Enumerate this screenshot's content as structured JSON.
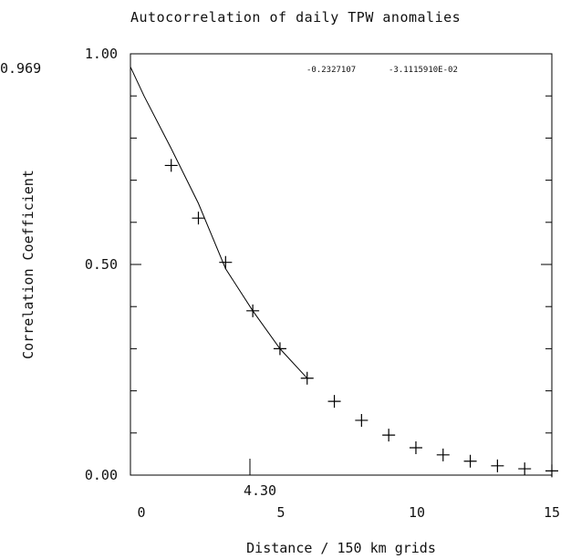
{
  "chart_data": {
    "type": "scatter",
    "title": "Autocorrelation of daily TPW anomalies",
    "xlabel": "Distance / 150 km grids",
    "ylabel": "Correlation Coefficient",
    "xlim": [
      -0.5,
      15
    ],
    "ylim": [
      0,
      1
    ],
    "x_ticks": [
      0,
      5,
      10,
      15
    ],
    "y_ticks": [
      "0.00",
      "0.50",
      "1.00"
    ],
    "annotations": {
      "intercept": "0.969",
      "e_fold": "4.30",
      "coef_a": "-0.2327107",
      "coef_b": "-3.1115910E-02"
    },
    "points": {
      "x": [
        1,
        2,
        3,
        4,
        5,
        6,
        7,
        8,
        9,
        10,
        11,
        12,
        13,
        14,
        15
      ],
      "y": [
        0.735,
        0.61,
        0.505,
        0.39,
        0.3,
        0.23,
        0.175,
        0.13,
        0.095,
        0.065,
        0.048,
        0.033,
        0.022,
        0.015,
        0.01
      ]
    },
    "fit": {
      "x": [
        -0.5,
        0,
        1,
        2,
        3,
        4,
        5,
        6
      ],
      "y": [
        0.969,
        0.9,
        0.775,
        0.645,
        0.49,
        0.39,
        0.3,
        0.23
      ]
    },
    "e_fold_x": 4.3,
    "grid": false
  },
  "colors": {
    "axes": "#000000",
    "text": "#111111",
    "background": "#ffffff"
  }
}
